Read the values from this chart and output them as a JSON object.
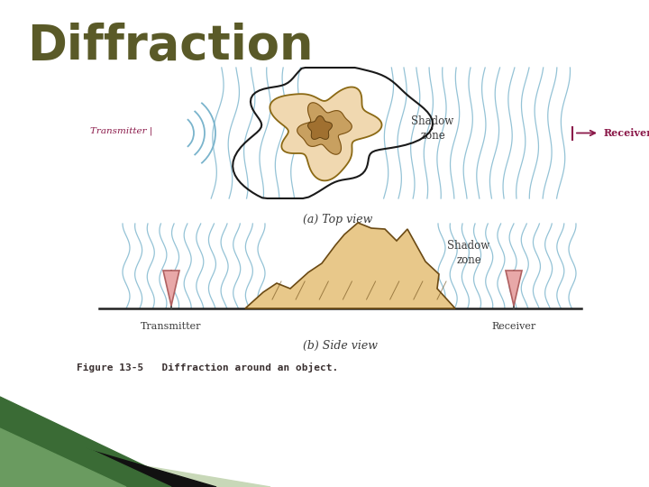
{
  "title": "Diffraction",
  "title_color": "#5a5a28",
  "title_fontsize": 38,
  "caption": "Figure 13-5   Diffraction around an object.",
  "caption_fontsize": 9,
  "background_color": "#ffffff",
  "top_view_label": "(a) Top view",
  "side_view_label": "(b) Side view",
  "top_transmitter_label": "Transmitter",
  "top_receiver_label": "Receiver",
  "top_shadow_label": "Shadow\nzone",
  "side_transmitter_label": "Transmitter",
  "side_receiver_label": "Receiver",
  "side_shadow_label": "Shadow\nzone",
  "label_color_red": "#8b1a4a",
  "label_color_dark": "#3a3a3a",
  "wave_color": "#7ab4cc",
  "object_fill_top": "#f0d8b0",
  "object_fill_side": "#e8c88a",
  "mountain_outline": "#6b4a14",
  "antenna_fill": "#e8a8a8",
  "antenna_outline": "#b06060",
  "green_stripe_color1": "#3a6b35",
  "green_stripe_color2": "#2d5228",
  "green_stripe_color3": "#c8d8c0",
  "fig_width": 7.2,
  "fig_height": 5.4,
  "dpi": 100
}
